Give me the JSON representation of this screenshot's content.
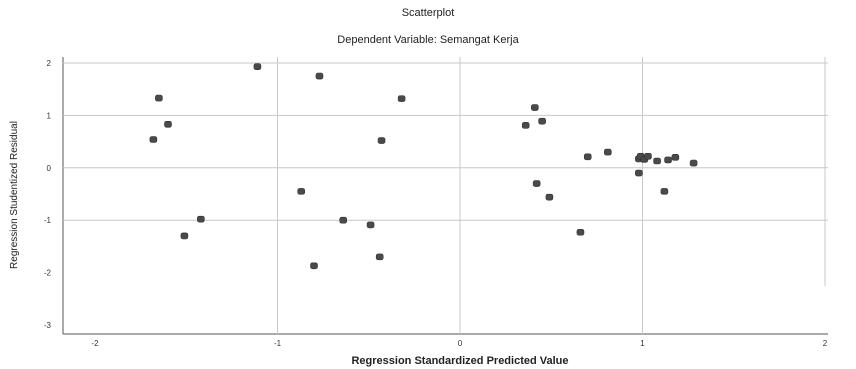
{
  "chart_data": {
    "type": "scatter",
    "title": "Scatterplot",
    "subtitle": "Dependent Variable: Semangat Kerja",
    "xlabel": "Regression Standardized Predicted Value",
    "ylabel": "Regression Studentized Residual",
    "xlim": [
      -2.0,
      2.0
    ],
    "ylim": [
      -3.0,
      2.0
    ],
    "xticks": [
      -2,
      -1,
      0,
      1,
      2
    ],
    "yticks": [
      2,
      1,
      0,
      -1,
      -2,
      -3
    ],
    "reference_lines": {
      "x": 0,
      "y": 0
    },
    "grid": true,
    "colors": {
      "marker": "#4a4a4a",
      "grid": "#c8c8c8",
      "axis": "#555555"
    },
    "points": [
      {
        "x": -1.11,
        "y": 1.93
      },
      {
        "x": -0.77,
        "y": 1.75
      },
      {
        "x": -1.65,
        "y": 1.33
      },
      {
        "x": -0.32,
        "y": 1.32
      },
      {
        "x": -1.6,
        "y": 0.83
      },
      {
        "x": -1.68,
        "y": 0.54
      },
      {
        "x": -0.43,
        "y": 0.52
      },
      {
        "x": 0.41,
        "y": 1.15
      },
      {
        "x": 0.45,
        "y": 0.89
      },
      {
        "x": 0.36,
        "y": 0.81
      },
      {
        "x": 0.7,
        "y": 0.21
      },
      {
        "x": 0.81,
        "y": 0.3
      },
      {
        "x": 0.98,
        "y": 0.17
      },
      {
        "x": 0.99,
        "y": 0.22
      },
      {
        "x": 1.01,
        "y": 0.16
      },
      {
        "x": 1.03,
        "y": 0.22
      },
      {
        "x": 1.08,
        "y": 0.13
      },
      {
        "x": 1.14,
        "y": 0.15
      },
      {
        "x": 1.18,
        "y": 0.2
      },
      {
        "x": 1.28,
        "y": 0.09
      },
      {
        "x": 0.98,
        "y": -0.1
      },
      {
        "x": 0.42,
        "y": -0.3
      },
      {
        "x": 0.49,
        "y": -0.56
      },
      {
        "x": 1.12,
        "y": -0.45
      },
      {
        "x": 0.66,
        "y": -1.23
      },
      {
        "x": -0.87,
        "y": -0.45
      },
      {
        "x": -1.42,
        "y": -0.98
      },
      {
        "x": -0.64,
        "y": -1.0
      },
      {
        "x": -0.49,
        "y": -1.09
      },
      {
        "x": -1.51,
        "y": -1.3
      },
      {
        "x": -0.44,
        "y": -1.7
      },
      {
        "x": -0.8,
        "y": -1.87
      }
    ]
  }
}
